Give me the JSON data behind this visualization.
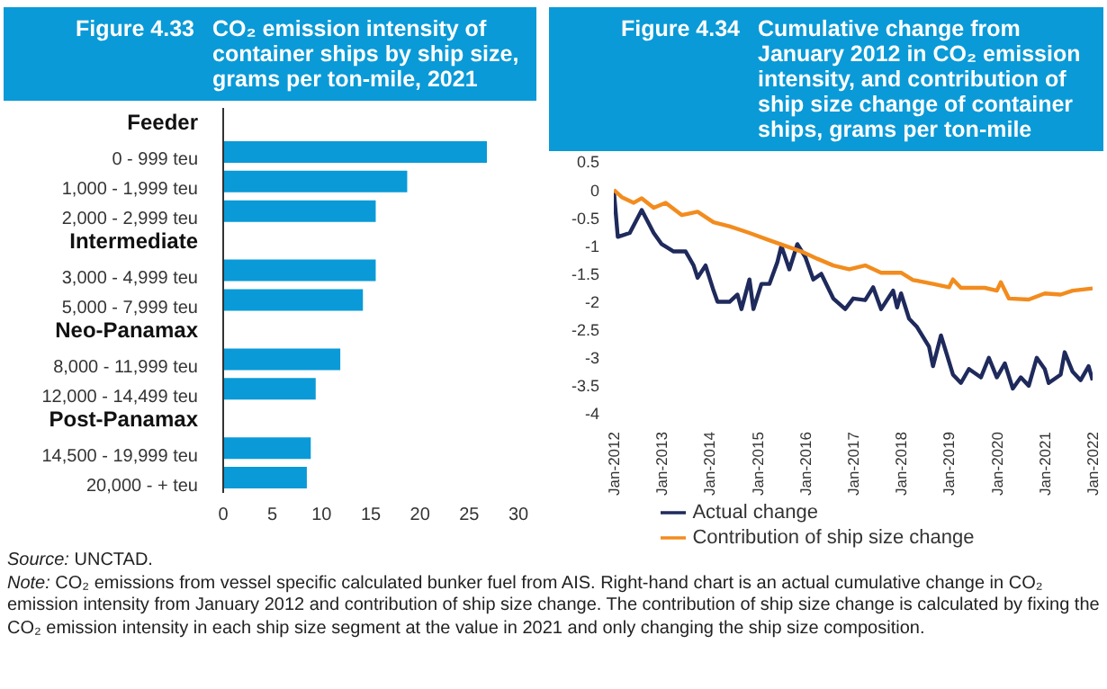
{
  "chart_data": [
    {
      "type": "bar",
      "orientation": "horizontal",
      "title": "Figure 4.33",
      "subtitle": "CO₂ emission intensity of container ships by ship size, grams per ton-mile, 2021",
      "categories": [
        "Feeder",
        "0 - 999 teu",
        "1,000 - 1,999 teu",
        "2,000 - 2,999 teu",
        "Intermediate",
        "3,000 - 4,999 teu",
        "5,000 - 7,999 teu",
        "Neo-Panamax",
        "8,000 - 11,999 teu",
        "12,000 - 14,499 teu",
        "Post-Panamax",
        "14,500 - 19,999 teu",
        "20,000 - + teu"
      ],
      "values": [
        null,
        26.8,
        18.7,
        15.5,
        null,
        15.5,
        14.2,
        null,
        11.9,
        9.4,
        null,
        8.9,
        8.5
      ],
      "color": "#0a9ad7",
      "xlim": [
        0,
        30
      ],
      "xticks": [
        0,
        5,
        10,
        15,
        20,
        25,
        30
      ],
      "annotations": [
        "Source: UNCTAD.",
        "Note: CO₂ emissions from vessel specific calculated bunker fuel from AIS. Right-hand chart is an actual cumulative change in CO₂ emission intensity from January 2012 and contribution of ship size change. The contribution of ship size change is calculated by fixing the CO₂ emission intensity in each ship size segment at the value in 2021 and only changing the ship size composition."
      ]
    },
    {
      "type": "line",
      "title": "Figure 4.34",
      "subtitle": "Cumulative change from January 2012 in CO₂ emission intensity, and contribution of ship size change of container ships, grams per ton-mile",
      "xlim": [
        "2012-01",
        "2022-01"
      ],
      "xticks": [
        {
          "value": "2012-01",
          "label": "Jan-2012"
        },
        {
          "value": "2013-01",
          "label": "Jan-2013"
        },
        {
          "value": "2014-01",
          "label": "Jan-2014"
        },
        {
          "value": "2015-01",
          "label": "Jan-2015"
        },
        {
          "value": "2016-01",
          "label": "Jan-2016"
        },
        {
          "value": "2017-01",
          "label": "Jan-2017"
        },
        {
          "value": "2018-01",
          "label": "Jan-2018"
        },
        {
          "value": "2019-01",
          "label": "Jan-2019"
        },
        {
          "value": "2020-01",
          "label": "Jan-2020"
        },
        {
          "value": "2021-01",
          "label": "Jan-2021"
        },
        {
          "value": "2022-01",
          "label": "Jan-2022"
        }
      ],
      "ylim": [
        -4,
        0.5
      ],
      "yticks": [
        0.5,
        0,
        -0.5,
        -1,
        -1.5,
        -2,
        -2.5,
        -3,
        -3.5,
        -4
      ],
      "legend": "bottom",
      "marker": "none",
      "series": [
        {
          "name": "Actual change",
          "color": "#1f2a5c",
          "x": [
            "2012-01",
            "2012-02",
            "2012-05",
            "2012-08",
            "2012-11",
            "2013-01",
            "2013-04",
            "2013-07",
            "2013-09",
            "2013-10",
            "2013-12",
            "2014-02",
            "2014-03",
            "2014-06",
            "2014-08",
            "2014-09",
            "2014-11",
            "2014-12",
            "2015-02",
            "2015-04",
            "2015-06",
            "2015-07",
            "2015-09",
            "2015-11",
            "2016-01",
            "2016-03",
            "2016-05",
            "2016-08",
            "2016-11",
            "2017-01",
            "2017-04",
            "2017-06",
            "2017-08",
            "2017-11",
            "2017-12",
            "2018-01",
            "2018-03",
            "2018-05",
            "2018-08",
            "2018-09",
            "2018-11",
            "2019-02",
            "2019-04",
            "2019-06",
            "2019-09",
            "2019-11",
            "2020-01",
            "2020-03",
            "2020-05",
            "2020-07",
            "2020-09",
            "2020-11",
            "2021-01",
            "2021-02",
            "2021-05",
            "2021-06",
            "2021-08",
            "2021-10",
            "2021-12",
            "2022-01"
          ],
          "values": [
            0,
            -0.84,
            -0.77,
            -0.36,
            -0.77,
            -0.97,
            -1.1,
            -1.1,
            -1.35,
            -1.57,
            -1.35,
            -1.8,
            -2.0,
            -2.0,
            -1.87,
            -2.13,
            -1.6,
            -2.13,
            -1.68,
            -1.68,
            -1.29,
            -1.0,
            -1.42,
            -0.97,
            -1.2,
            -1.6,
            -1.5,
            -1.94,
            -2.13,
            -1.94,
            -1.97,
            -1.74,
            -2.13,
            -1.8,
            -2.1,
            -1.85,
            -2.3,
            -2.45,
            -2.8,
            -3.15,
            -2.6,
            -3.3,
            -3.45,
            -3.2,
            -3.35,
            -3.0,
            -3.35,
            -3.1,
            -3.55,
            -3.35,
            -3.5,
            -3.0,
            -3.2,
            -3.45,
            -3.3,
            -2.9,
            -3.25,
            -3.4,
            -3.15,
            -3.4
          ]
        },
        {
          "name": "Contribution of ship size change",
          "color": "#f28c1e",
          "x": [
            "2012-01",
            "2012-03",
            "2012-06",
            "2012-08",
            "2012-11",
            "2013-02",
            "2013-06",
            "2013-10",
            "2014-02",
            "2014-06",
            "2014-11",
            "2015-04",
            "2015-08",
            "2015-12",
            "2016-04",
            "2016-08",
            "2016-12",
            "2017-04",
            "2017-08",
            "2018-01",
            "2018-04",
            "2018-09",
            "2019-01",
            "2019-02",
            "2019-04",
            "2019-10",
            "2020-01",
            "2020-02",
            "2020-04",
            "2020-09",
            "2021-01",
            "2021-05",
            "2021-08",
            "2022-01"
          ],
          "values": [
            0,
            -0.13,
            -0.23,
            -0.15,
            -0.32,
            -0.23,
            -0.45,
            -0.39,
            -0.58,
            -0.65,
            -0.77,
            -0.9,
            -1.0,
            -1.1,
            -1.23,
            -1.35,
            -1.42,
            -1.35,
            -1.48,
            -1.48,
            -1.61,
            -1.68,
            -1.74,
            -1.6,
            -1.75,
            -1.75,
            -1.8,
            -1.65,
            -1.94,
            -1.96,
            -1.85,
            -1.87,
            -1.8,
            -1.76
          ]
        }
      ]
    }
  ]
}
